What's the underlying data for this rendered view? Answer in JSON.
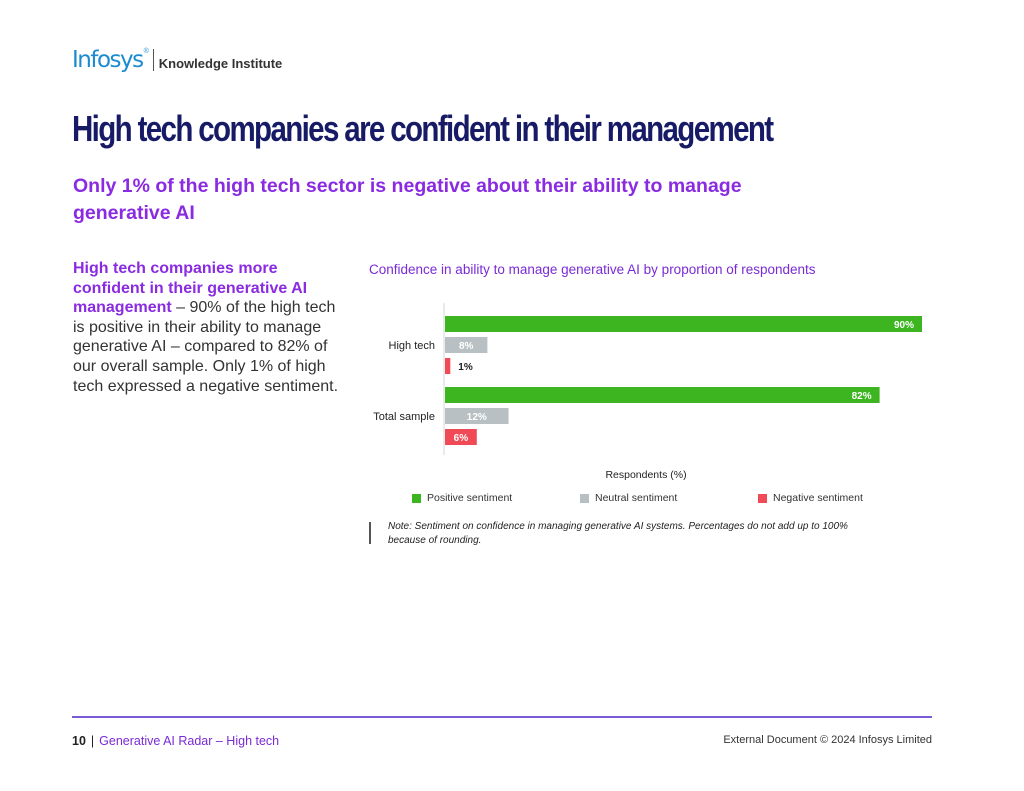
{
  "brand": {
    "logo": "Infosys",
    "registered": "®",
    "institute": "Knowledge Institute"
  },
  "page_title": "High tech companies are confident in their management",
  "subtitle": "Only 1% of the high tech sector is negative about their ability to manage generative AI",
  "body": {
    "lead": "High tech companies more confident in their generative AI management",
    "text": " – 90% of the high tech is positive in their ability to manage generative AI – compared to 82% of our overall sample. Only 1% of high tech expressed a negative sentiment."
  },
  "chart_data": {
    "type": "bar",
    "orientation": "horizontal",
    "title": "Confidence in ability to manage generative AI by proportion of respondents",
    "xlabel": "Respondents (%)",
    "ylabel": "",
    "xlim": [
      0,
      100
    ],
    "categories": [
      "High tech",
      "Total sample"
    ],
    "series": [
      {
        "name": "Positive sentiment",
        "values": [
          90,
          82
        ],
        "labels": [
          "90%",
          "82%"
        ],
        "color": "#3cb521"
      },
      {
        "name": "Neutral sentiment",
        "values": [
          8,
          12
        ],
        "labels": [
          "8%",
          "12%"
        ],
        "color": "#b9c0c3"
      },
      {
        "name": "Negative  sentiment",
        "values": [
          1,
          6
        ],
        "labels": [
          "1%",
          "6%"
        ],
        "color": "#ef4a55"
      }
    ],
    "legend_position": "bottom",
    "grid": false
  },
  "note": "Note: Sentiment on confidence in managing generative AI systems. Percentages do not add up to 100% because of rounding.",
  "footer": {
    "page_number": "10",
    "separator": "|",
    "section": "Generative AI Radar – High tech",
    "copyright": "External Document © 2024 Infosys Limited"
  }
}
